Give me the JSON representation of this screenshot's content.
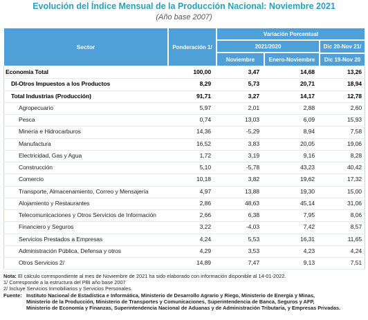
{
  "title": "Evolución del Índice Mensual de la Producción Nacional: Noviembre 2021",
  "subtitle": "(Año base 2007)",
  "header": {
    "sector": "Sector",
    "ponderacion": "Ponderación 1/",
    "variacion": "Variación Porcentual",
    "period": "2021/2020",
    "noviembre": "Noviembre",
    "enero_noviembre": "Enero-Noviembre",
    "dic1": "Dic 20-Nov 21/",
    "dic2": "Dic 19-Nov 20"
  },
  "table": {
    "rows": [
      [
        "Economía Total",
        "100,00",
        "3,47",
        "14,68",
        "13,26"
      ],
      [
        "DI-Otros Impuestos a los Productos",
        "8,29",
        "5,73",
        "20,71",
        "18,94"
      ],
      [
        "Total  Industrias (Producción)",
        "91,71",
        "3,27",
        "14,17",
        "12,78"
      ],
      [
        "Agropecuario",
        "5,97",
        "2,01",
        "2,88",
        "2,60"
      ],
      [
        "Pesca",
        "0,74",
        "13,03",
        "6,09",
        "15,93"
      ],
      [
        "Minería e Hidrocarburos",
        "14,36",
        "-5,29",
        "8,94",
        "7,58"
      ],
      [
        "Manufactura",
        "16,52",
        "3,83",
        "20,05",
        "19,06"
      ],
      [
        "Electricidad, Gas y Agua",
        "1,72",
        "3,19",
        "9,16",
        "8,28"
      ],
      [
        "Construcción",
        "5,10",
        "-5,78",
        "43,23",
        "40,42"
      ],
      [
        "Comercio",
        "10,18",
        "3,82",
        "19,62",
        "17,32"
      ],
      [
        "Transporte, Almacenamiento, Correo y Mensajería",
        "4,97",
        "13,88",
        "19,30",
        "15,00"
      ],
      [
        "Alojamiento y Restaurantes",
        "2,86",
        "48,63",
        "45,14",
        "31,06"
      ],
      [
        "Telecomunicaciones y Otros Servicios de Información",
        "2,66",
        "6,38",
        "7,95",
        "8,06"
      ],
      [
        "Financiero y Seguros",
        "3,22",
        "-4,03",
        "7,42",
        "8,57"
      ],
      [
        "Servicios Prestados a Empresas",
        "4,24",
        "5,53",
        "16,31",
        "11,65"
      ],
      [
        "Administración Pública, Defensa y otros",
        "4,29",
        "3,53",
        "4,23",
        "4,24"
      ],
      [
        "Otros Servicios 2/",
        "14,89",
        "7,47",
        "9,13",
        "7,51"
      ]
    ]
  },
  "notes": {
    "nota_label": "Nota:",
    "nota": "El cálculo correspondiente al mes de Noviembre de 2021 ha sido elaborado con información disponible al 14-01-2022.",
    "note1": "1/ Corresponde a la estructura del PBI año base 2007",
    "note2": "2/ Incluye Servicios Inmobiliarios y Servicios Personales.",
    "fuente_label": "Fuente:",
    "fuente": [
      "Instituto Nacional de Estadística e Informática, Ministerio de Desarrollo Agrario y Riego, Ministerio de Energía y Minas,",
      "Ministerio de la Producción, Ministerio de Transportes y Comunicaciones, Superintendencia de Banca, Seguros y AFP,",
      "Ministerio de Economía y Finanzas, Superintendencia Nacional de Aduanas y de Administración Tributaria, y Empresas Privadas."
    ]
  }
}
